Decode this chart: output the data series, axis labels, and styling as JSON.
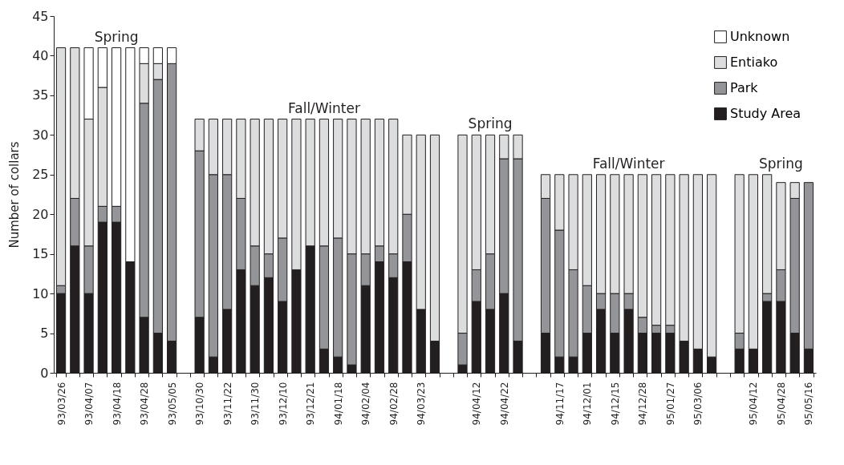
{
  "chart_data": {
    "type": "bar",
    "stacked": true,
    "ylabel": "Number of collars",
    "categories": [
      "93/03/26",
      null,
      "93/04/07",
      null,
      "93/04/18",
      null,
      "93/04/28",
      null,
      "93/05/05",
      null,
      "93/10/30",
      null,
      "93/11/22",
      null,
      "93/11/30",
      null,
      "93/12/10",
      null,
      "93/12/21",
      null,
      "94/01/18",
      null,
      "94/02/04",
      null,
      "94/02/28",
      null,
      "94/03/23",
      null,
      null,
      null,
      "94/04/12",
      null,
      "94/04/22",
      null,
      null,
      null,
      "94/11/17",
      null,
      "94/12/01",
      null,
      "94/12/15",
      null,
      "94/12/28",
      null,
      "95/01/27",
      null,
      "95/03/06",
      null,
      null,
      null,
      "95/04/12",
      null,
      "95/04/28",
      null,
      "95/05/16"
    ],
    "series": [
      {
        "name": "Study Area",
        "color": "#231f20",
        "values": [
          10,
          16,
          10,
          19,
          19,
          14,
          7,
          5,
          4,
          null,
          7,
          2,
          8,
          13,
          11,
          12,
          9,
          13,
          16,
          3,
          2,
          1,
          11,
          14,
          12,
          14,
          8,
          4,
          null,
          1,
          9,
          8,
          10,
          4,
          null,
          5,
          2,
          2,
          5,
          8,
          5,
          8,
          5,
          5,
          5,
          4,
          3,
          2,
          null,
          3,
          3,
          9,
          9,
          5,
          3
        ]
      },
      {
        "name": "Park",
        "color": "#939598",
        "values": [
          1,
          6,
          6,
          2,
          2,
          null,
          27,
          32,
          35,
          null,
          21,
          23,
          17,
          9,
          5,
          3,
          8,
          null,
          null,
          13,
          15,
          14,
          4,
          2,
          3,
          6,
          null,
          null,
          null,
          4,
          4,
          7,
          17,
          23,
          null,
          17,
          16,
          11,
          6,
          2,
          5,
          2,
          2,
          1,
          1,
          null,
          null,
          null,
          null,
          2,
          null,
          1,
          4,
          17,
          21
        ]
      },
      {
        "name": "Entiako",
        "color": "#dcddde",
        "values": [
          30,
          19,
          16,
          15,
          null,
          null,
          5,
          2,
          null,
          null,
          4,
          7,
          7,
          10,
          16,
          17,
          15,
          19,
          16,
          16,
          15,
          17,
          17,
          16,
          17,
          10,
          22,
          26,
          null,
          25,
          17,
          15,
          3,
          3,
          null,
          3,
          7,
          12,
          14,
          15,
          15,
          15,
          18,
          19,
          19,
          21,
          22,
          23,
          null,
          20,
          22,
          15,
          11,
          2,
          null
        ]
      },
      {
        "name": "Unknown",
        "color": "#ffffff",
        "values": [
          null,
          null,
          9,
          5,
          20,
          27,
          2,
          2,
          2,
          null,
          null,
          null,
          null,
          null,
          null,
          null,
          null,
          null,
          null,
          null,
          null,
          null,
          null,
          null,
          null,
          null,
          null,
          null,
          null,
          null,
          null,
          null,
          null,
          null,
          null,
          null,
          null,
          null,
          null,
          null,
          null,
          null,
          null,
          null,
          null,
          null,
          null,
          null,
          null,
          null,
          null,
          null,
          null,
          null,
          null
        ]
      }
    ],
    "ylim": [
      0,
      45
    ],
    "yticks": [
      0,
      5,
      10,
      15,
      20,
      25,
      30,
      35,
      40,
      45
    ],
    "grid": false,
    "legend": "top right",
    "annotations": [
      "Spring",
      "Fall/Winter",
      "Spring",
      "Fall/Winter",
      "Spring"
    ]
  }
}
